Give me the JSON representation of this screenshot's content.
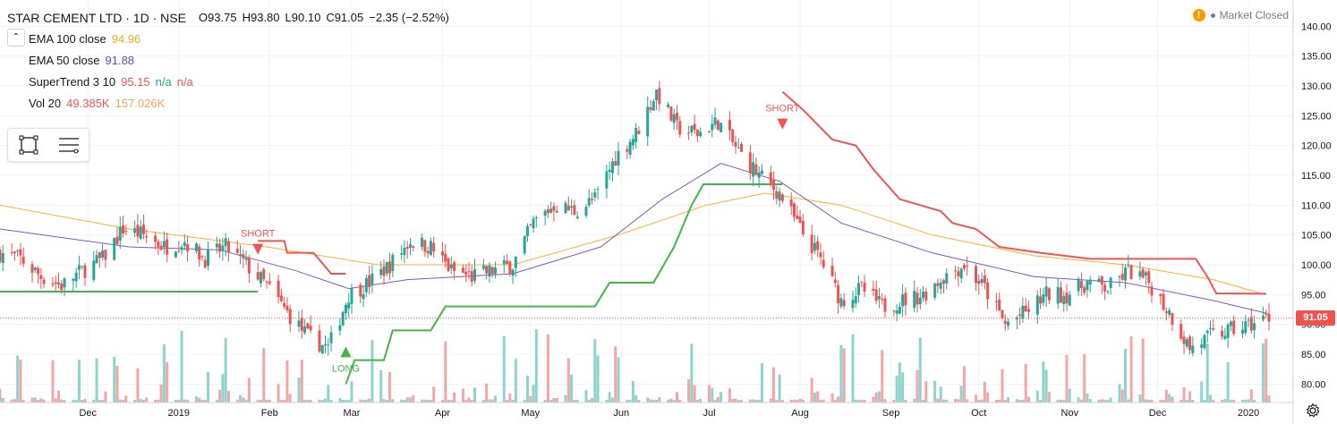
{
  "legend": {
    "symbol": "STAR CEMENT LTD · 1D · NSE",
    "ohlc": [
      {
        "label": "O",
        "value": "93.75"
      },
      {
        "label": "H",
        "value": "93.80"
      },
      {
        "label": "L",
        "value": "90.10"
      },
      {
        "label": "C",
        "value": "91.05"
      }
    ],
    "change": "−2.35 (−2.52%)",
    "indicators": [
      {
        "name": "EMA 100 close",
        "values": [
          "94.96"
        ],
        "colors": [
          "#f2a824"
        ]
      },
      {
        "name": "EMA 50 close",
        "values": [
          "91.88"
        ],
        "colors": [
          "#6a4aa8"
        ]
      },
      {
        "name": "SuperTrend 3 10",
        "values": [
          "95.15",
          "n/a",
          "n/a"
        ],
        "colors": [
          "#ef5350",
          "#26a69a",
          "#ef5350"
        ]
      },
      {
        "name": "Vol 20",
        "values": [
          "49.385K",
          "157.026K"
        ],
        "colors": [
          "#ef5350",
          "#f7a35c"
        ]
      }
    ]
  },
  "toolbar": {
    "tools": [
      {
        "icon": "rectangle-select-icon"
      },
      {
        "icon": "object-tree-icon"
      }
    ]
  },
  "status": {
    "market": "Market Closed",
    "warn_icon": "!"
  },
  "price_tag": "91.05",
  "colors": {
    "up": "#26a69a",
    "down": "#ef5350",
    "ema100": "#f5b332",
    "ema50": "#7e57c2",
    "st_up": "#43b54a",
    "st_down": "#f05454",
    "vol_up": "#8fd4cc",
    "vol_down": "#f4a6a6"
  },
  "chart_data": {
    "type": "candlestick",
    "title": "STAR CEMENT LTD · 1D · NSE",
    "ylim": [
      77.5,
      142
    ],
    "y_ticks": [
      80,
      85,
      90,
      95,
      100,
      105,
      110,
      115,
      120,
      125,
      130,
      135,
      140
    ],
    "x_ticks": [
      {
        "label": "Dec",
        "date": "2018-12-01"
      },
      {
        "label": "2019",
        "date": "2019-01-01"
      },
      {
        "label": "Feb",
        "date": "2019-02-01"
      },
      {
        "label": "Mar",
        "date": "2019-03-01"
      },
      {
        "label": "Apr",
        "date": "2019-04-01"
      },
      {
        "label": "May",
        "date": "2019-05-01"
      },
      {
        "label": "Jun",
        "date": "2019-06-01"
      },
      {
        "label": "Jul",
        "date": "2019-07-01"
      },
      {
        "label": "Aug",
        "date": "2019-08-01"
      },
      {
        "label": "Sep",
        "date": "2019-09-01"
      },
      {
        "label": "Oct",
        "date": "2019-10-01"
      },
      {
        "label": "Nov",
        "date": "2019-11-01"
      },
      {
        "label": "Dec",
        "date": "2019-12-01"
      },
      {
        "label": "2020",
        "date": "2020-01-01"
      }
    ],
    "x_range": [
      "2018-11-01",
      "2020-01-08"
    ],
    "close_path": [
      [
        "2018-11-01",
        102
      ],
      [
        "2018-11-08",
        101
      ],
      [
        "2018-11-15",
        98
      ],
      [
        "2018-11-22",
        96.5
      ],
      [
        "2018-11-29",
        99
      ],
      [
        "2018-12-06",
        101
      ],
      [
        "2018-12-13",
        106
      ],
      [
        "2018-12-20",
        105
      ],
      [
        "2018-12-27",
        103
      ],
      [
        "2019-01-03",
        104
      ],
      [
        "2019-01-10",
        101
      ],
      [
        "2019-01-17",
        103
      ],
      [
        "2019-01-24",
        100
      ],
      [
        "2019-01-31",
        96.5
      ],
      [
        "2019-02-07",
        92
      ],
      [
        "2019-02-14",
        88
      ],
      [
        "2019-02-21",
        86
      ],
      [
        "2019-02-28",
        95
      ],
      [
        "2019-03-07",
        97
      ],
      [
        "2019-03-14",
        100
      ],
      [
        "2019-03-21",
        104
      ],
      [
        "2019-03-28",
        103
      ],
      [
        "2019-04-04",
        99
      ],
      [
        "2019-04-11",
        98
      ],
      [
        "2019-04-18",
        99
      ],
      [
        "2019-04-25",
        100
      ],
      [
        "2019-05-02",
        107
      ],
      [
        "2019-05-09",
        110
      ],
      [
        "2019-05-16",
        109
      ],
      [
        "2019-05-23",
        111
      ],
      [
        "2019-05-30",
        118
      ],
      [
        "2019-06-06",
        122
      ],
      [
        "2019-06-13",
        129
      ],
      [
        "2019-06-20",
        123
      ],
      [
        "2019-06-27",
        122
      ],
      [
        "2019-07-04",
        124
      ],
      [
        "2019-07-11",
        119
      ],
      [
        "2019-07-18",
        115
      ],
      [
        "2019-07-25",
        112
      ],
      [
        "2019-08-01",
        106
      ],
      [
        "2019-08-08",
        101
      ],
      [
        "2019-08-15",
        94
      ],
      [
        "2019-08-22",
        96
      ],
      [
        "2019-08-29",
        93
      ],
      [
        "2019-09-05",
        94
      ],
      [
        "2019-09-12",
        95
      ],
      [
        "2019-09-19",
        98
      ],
      [
        "2019-09-26",
        100
      ],
      [
        "2019-10-03",
        96
      ],
      [
        "2019-10-10",
        90
      ],
      [
        "2019-10-17",
        92
      ],
      [
        "2019-10-24",
        95
      ],
      [
        "2019-10-31",
        95
      ],
      [
        "2019-11-07",
        97
      ],
      [
        "2019-11-14",
        96
      ],
      [
        "2019-11-21",
        99
      ],
      [
        "2019-11-28",
        97
      ],
      [
        "2019-12-05",
        92
      ],
      [
        "2019-12-12",
        86
      ],
      [
        "2019-12-19",
        88
      ],
      [
        "2019-12-26",
        89
      ],
      [
        "2020-01-02",
        90
      ],
      [
        "2020-01-07",
        91.05
      ]
    ],
    "ema100": [
      [
        "2018-11-01",
        110
      ],
      [
        "2018-12-15",
        106
      ],
      [
        "2019-01-31",
        103
      ],
      [
        "2019-03-10",
        100
      ],
      [
        "2019-04-25",
        100
      ],
      [
        "2019-05-31",
        105
      ],
      [
        "2019-06-30",
        110
      ],
      [
        "2019-07-20",
        112
      ],
      [
        "2019-08-15",
        110
      ],
      [
        "2019-09-15",
        105
      ],
      [
        "2019-10-20",
        101.5
      ],
      [
        "2019-11-20",
        100
      ],
      [
        "2019-12-20",
        97.5
      ],
      [
        "2020-01-07",
        94.96
      ]
    ],
    "ema50": [
      [
        "2018-11-01",
        106
      ],
      [
        "2018-12-15",
        103
      ],
      [
        "2019-01-15",
        102.5
      ],
      [
        "2019-02-10",
        99
      ],
      [
        "2019-02-28",
        96
      ],
      [
        "2019-03-20",
        97.5
      ],
      [
        "2019-04-25",
        98.5
      ],
      [
        "2019-05-25",
        103
      ],
      [
        "2019-06-15",
        111
      ],
      [
        "2019-07-05",
        117
      ],
      [
        "2019-07-25",
        114
      ],
      [
        "2019-08-15",
        107
      ],
      [
        "2019-09-15",
        102
      ],
      [
        "2019-10-20",
        98
      ],
      [
        "2019-11-20",
        97
      ],
      [
        "2019-12-20",
        94
      ],
      [
        "2020-01-07",
        91.88
      ]
    ],
    "supertrend": [
      {
        "trend": "up",
        "points": [
          [
            "2018-11-01",
            95.5
          ],
          [
            "2019-01-28",
            95.5
          ]
        ]
      },
      {
        "trend": "down",
        "points": [
          [
            "2019-01-28",
            104
          ],
          [
            "2019-02-06",
            104
          ],
          [
            "2019-02-07",
            102
          ],
          [
            "2019-02-16",
            102
          ],
          [
            "2019-02-22",
            98.5
          ],
          [
            "2019-02-27",
            98.5
          ]
        ]
      },
      {
        "trend": "up",
        "points": [
          [
            "2019-02-27",
            80
          ],
          [
            "2019-03-02",
            84
          ],
          [
            "2019-03-12",
            84
          ],
          [
            "2019-03-15",
            89
          ],
          [
            "2019-03-28",
            89
          ],
          [
            "2019-04-02",
            93
          ],
          [
            "2019-05-23",
            93
          ],
          [
            "2019-05-28",
            97
          ],
          [
            "2019-06-12",
            97
          ],
          [
            "2019-06-19",
            103
          ],
          [
            "2019-06-25",
            110
          ],
          [
            "2019-06-29",
            113.5
          ],
          [
            "2019-07-26",
            113.5
          ]
        ]
      },
      {
        "trend": "down",
        "points": [
          [
            "2019-07-26",
            129
          ],
          [
            "2019-08-02",
            126
          ],
          [
            "2019-08-08",
            123
          ],
          [
            "2019-08-12",
            121
          ],
          [
            "2019-08-20",
            120
          ],
          [
            "2019-08-26",
            116
          ],
          [
            "2019-09-04",
            111
          ],
          [
            "2019-09-18",
            109
          ],
          [
            "2019-09-22",
            107
          ],
          [
            "2019-09-30",
            106
          ],
          [
            "2019-10-08",
            103
          ],
          [
            "2019-10-22",
            102
          ],
          [
            "2019-11-08",
            101
          ],
          [
            "2019-12-14",
            101
          ],
          [
            "2019-12-18",
            98
          ],
          [
            "2019-12-21",
            95.2
          ],
          [
            "2020-01-07",
            95.15
          ]
        ]
      }
    ],
    "signals": [
      {
        "type": "SHORT",
        "date": "2019-01-28",
        "price": 103.5
      },
      {
        "type": "LONG",
        "date": "2019-02-27",
        "price": 84.5
      },
      {
        "type": "SHORT",
        "date": "2019-07-26",
        "price": 124.5
      }
    ],
    "last_price": 91.05
  }
}
